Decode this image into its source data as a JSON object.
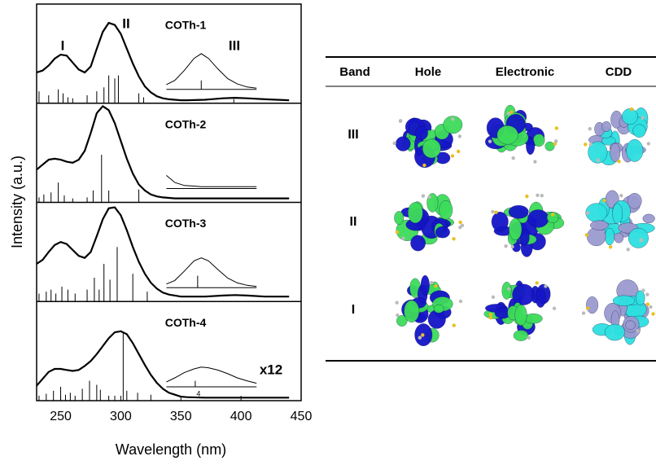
{
  "chart_data": [
    {
      "type": "line",
      "title": "COTh-1",
      "annotations": [
        "I",
        "II",
        "III"
      ],
      "ylabel": "Intensity (a.u.)",
      "xlim": [
        230,
        450
      ],
      "ylim": [
        0,
        1
      ],
      "color": "#000000",
      "x": [
        230,
        235,
        240,
        245,
        250,
        255,
        260,
        265,
        270,
        275,
        280,
        285,
        290,
        295,
        300,
        305,
        310,
        315,
        320,
        325,
        330,
        335,
        340,
        345,
        350,
        355,
        370,
        385,
        395,
        405,
        420,
        440
      ],
      "values": [
        0.31,
        0.33,
        0.38,
        0.45,
        0.49,
        0.48,
        0.41,
        0.34,
        0.31,
        0.37,
        0.55,
        0.72,
        0.81,
        0.79,
        0.7,
        0.55,
        0.4,
        0.27,
        0.17,
        0.11,
        0.07,
        0.05,
        0.04,
        0.035,
        0.03,
        0.03,
        0.035,
        0.05,
        0.055,
        0.05,
        0.04,
        0.03
      ],
      "sticks": {
        "x": [
          232,
          240,
          248,
          252,
          256,
          260,
          272,
          280,
          286,
          290,
          295,
          298,
          315,
          319,
          394
        ],
        "values": [
          0.12,
          0.08,
          0.14,
          0.1,
          0.06,
          0.05,
          0.08,
          0.12,
          0.16,
          0.28,
          0.25,
          0.28,
          0.1,
          0.06,
          0.04
        ]
      },
      "inset": {
        "ylim": [
          0,
          1
        ],
        "x": [
          365,
          372,
          380,
          388,
          394,
          400,
          408,
          416,
          424,
          432,
          440
        ],
        "values": [
          0.08,
          0.15,
          0.32,
          0.52,
          0.6,
          0.52,
          0.34,
          0.18,
          0.09,
          0.04,
          0.02
        ],
        "sticks": {
          "x": [
            394
          ],
          "values": [
            0.15
          ]
        }
      }
    },
    {
      "type": "line",
      "title": "COTh-2",
      "xlim": [
        230,
        450
      ],
      "ylim": [
        0,
        1
      ],
      "color": "#000000",
      "x": [
        230,
        235,
        240,
        245,
        250,
        255,
        260,
        265,
        270,
        275,
        280,
        285,
        290,
        295,
        300,
        305,
        310,
        315,
        320,
        325,
        330,
        335,
        340,
        345,
        350,
        355,
        370,
        385,
        395,
        405,
        420,
        440
      ],
      "values": [
        0.33,
        0.38,
        0.43,
        0.44,
        0.43,
        0.41,
        0.4,
        0.43,
        0.52,
        0.7,
        0.9,
        0.97,
        0.93,
        0.8,
        0.62,
        0.44,
        0.29,
        0.18,
        0.12,
        0.08,
        0.06,
        0.05,
        0.045,
        0.04,
        0.04,
        0.04,
        0.04,
        0.04,
        0.04,
        0.04,
        0.04,
        0.04
      ],
      "sticks": {
        "x": [
          232,
          236,
          242,
          248,
          253,
          260,
          272,
          277,
          284,
          290,
          315
        ],
        "values": [
          0.05,
          0.08,
          0.1,
          0.2,
          0.07,
          0.04,
          0.05,
          0.12,
          0.48,
          0.12,
          0.13
        ]
      },
      "inset": {
        "ylim": [
          0,
          1
        ],
        "x": [
          365,
          372,
          380,
          388,
          394,
          400,
          408,
          416,
          424,
          432,
          440
        ],
        "values": [
          0.22,
          0.1,
          0.05,
          0.04,
          0.03,
          0.03,
          0.03,
          0.03,
          0.03,
          0.03,
          0.03
        ]
      }
    },
    {
      "type": "line",
      "title": "COTh-3",
      "xlim": [
        230,
        450
      ],
      "ylim": [
        0,
        1
      ],
      "color": "#000000",
      "x": [
        230,
        235,
        240,
        245,
        250,
        255,
        260,
        265,
        270,
        275,
        280,
        285,
        290,
        295,
        300,
        305,
        310,
        315,
        320,
        325,
        330,
        335,
        340,
        345,
        350,
        355,
        370,
        385,
        395,
        405,
        420,
        440
      ],
      "values": [
        0.38,
        0.42,
        0.5,
        0.57,
        0.6,
        0.58,
        0.52,
        0.46,
        0.44,
        0.5,
        0.66,
        0.83,
        0.94,
        0.95,
        0.87,
        0.72,
        0.55,
        0.4,
        0.28,
        0.19,
        0.13,
        0.09,
        0.07,
        0.06,
        0.05,
        0.05,
        0.05,
        0.06,
        0.065,
        0.06,
        0.05,
        0.05
      ],
      "sticks": {
        "x": [
          232,
          238,
          242,
          246,
          251,
          256,
          262,
          272,
          278,
          282,
          286,
          291,
          297,
          310,
          322
        ],
        "values": [
          0.08,
          0.1,
          0.12,
          0.08,
          0.15,
          0.12,
          0.08,
          0.12,
          0.24,
          0.12,
          0.38,
          0.22,
          0.55,
          0.28,
          0.1
        ]
      },
      "inset": {
        "ylim": [
          0,
          1
        ],
        "x": [
          365,
          372,
          380,
          388,
          394,
          400,
          408,
          416,
          424,
          432,
          440
        ],
        "values": [
          0.06,
          0.12,
          0.28,
          0.45,
          0.5,
          0.45,
          0.3,
          0.16,
          0.08,
          0.04,
          0.02
        ],
        "sticks": {
          "x": [
            391
          ],
          "values": [
            0.2
          ]
        }
      }
    },
    {
      "type": "line",
      "title": "COTh-4",
      "xlabel": "Wavelength (nm)",
      "xlim": [
        230,
        450
      ],
      "xticks": [
        250,
        300,
        350,
        400,
        450
      ],
      "ylim": [
        0,
        1
      ],
      "color": "#000000",
      "x": [
        230,
        235,
        240,
        245,
        250,
        255,
        260,
        265,
        270,
        275,
        280,
        285,
        290,
        295,
        300,
        305,
        310,
        315,
        320,
        325,
        330,
        335,
        340,
        345,
        350,
        355,
        370,
        385,
        395,
        405,
        420,
        440
      ],
      "values": [
        0.15,
        0.22,
        0.29,
        0.32,
        0.32,
        0.31,
        0.3,
        0.31,
        0.35,
        0.4,
        0.47,
        0.55,
        0.63,
        0.69,
        0.7,
        0.67,
        0.58,
        0.47,
        0.36,
        0.26,
        0.18,
        0.12,
        0.08,
        0.06,
        0.04,
        0.035,
        0.03,
        0.03,
        0.03,
        0.03,
        0.03,
        0.03
      ],
      "sticks": {
        "x": [
          232,
          238,
          244,
          250,
          254,
          258,
          262,
          268,
          274,
          280,
          283,
          290,
          295,
          302,
          305,
          314,
          325
        ],
        "values": [
          0.05,
          0.07,
          0.1,
          0.14,
          0.06,
          0.08,
          0.05,
          0.12,
          0.2,
          0.16,
          0.11,
          0.05,
          0.05,
          0.68,
          0.1,
          0.08,
          0.06
        ]
      },
      "inset": {
        "ylim": [
          0,
          1
        ],
        "label": "x12",
        "stick_label": "4",
        "x": [
          365,
          372,
          380,
          388,
          394,
          400,
          408,
          416,
          424,
          432,
          440
        ],
        "values": [
          0.08,
          0.15,
          0.24,
          0.3,
          0.33,
          0.32,
          0.28,
          0.22,
          0.15,
          0.1,
          0.06
        ],
        "sticks": {
          "x": [
            389
          ],
          "values": [
            0.1
          ]
        }
      }
    }
  ],
  "table": {
    "header": [
      "Band",
      "Hole",
      "Electronic",
      "CDD"
    ],
    "rows": [
      [
        "III"
      ],
      [
        "II"
      ],
      [
        "I"
      ]
    ]
  }
}
